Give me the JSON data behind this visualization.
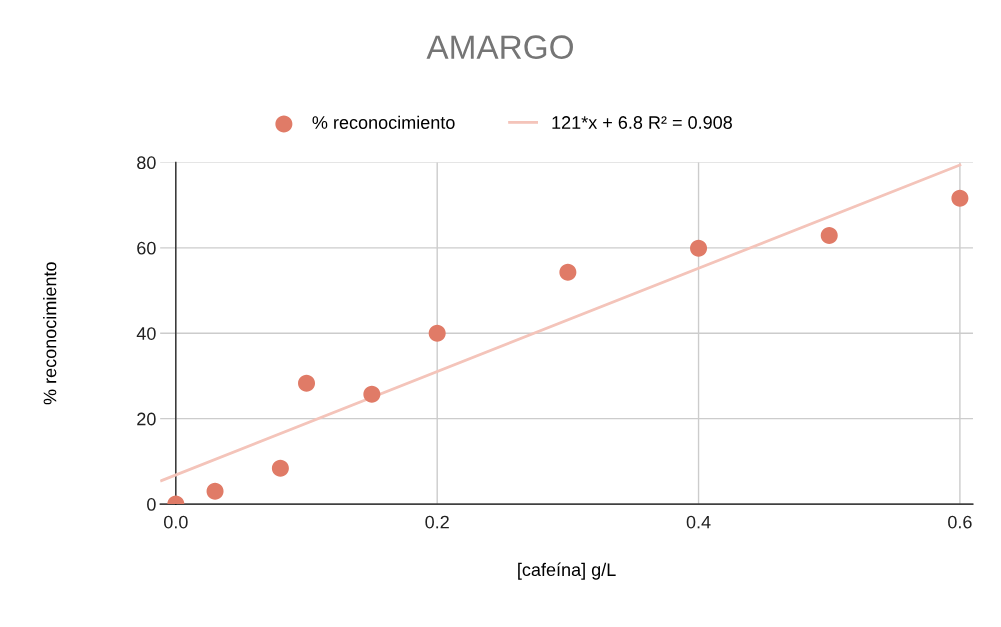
{
  "chart_data": {
    "type": "scatter",
    "title": "AMARGO",
    "xlabel": "[cafeína] g/L",
    "ylabel": "% reconocimiento",
    "xlim": [
      -0.012,
      0.61
    ],
    "ylim": [
      0,
      80
    ],
    "xticks": [
      {
        "value": 0,
        "label": "0.0"
      },
      {
        "value": 0.2,
        "label": "0.2"
      },
      {
        "value": 0.4,
        "label": "0.4"
      },
      {
        "value": 0.6,
        "label": "0.6"
      }
    ],
    "yticks": [
      0,
      20,
      40,
      60,
      80
    ],
    "grid": true,
    "legend": "top",
    "series": [
      {
        "name": "% reconocimiento",
        "color": "#e07b67",
        "marker": "circle",
        "x": [
          0,
          0.03,
          0.08,
          0.1,
          0.15,
          0.2,
          0.3,
          0.4,
          0.5,
          0.6
        ],
        "values": [
          0,
          3,
          8.4,
          28.3,
          25.7,
          40,
          54.3,
          59.9,
          62.9,
          71.6
        ]
      },
      {
        "name": "121*x + 6.8 R² = 0.908",
        "type": "line",
        "color": "#f4c4ba",
        "x": [
          -0.011,
          0.6
        ],
        "values": [
          5.5,
          79.4
        ]
      }
    ]
  }
}
